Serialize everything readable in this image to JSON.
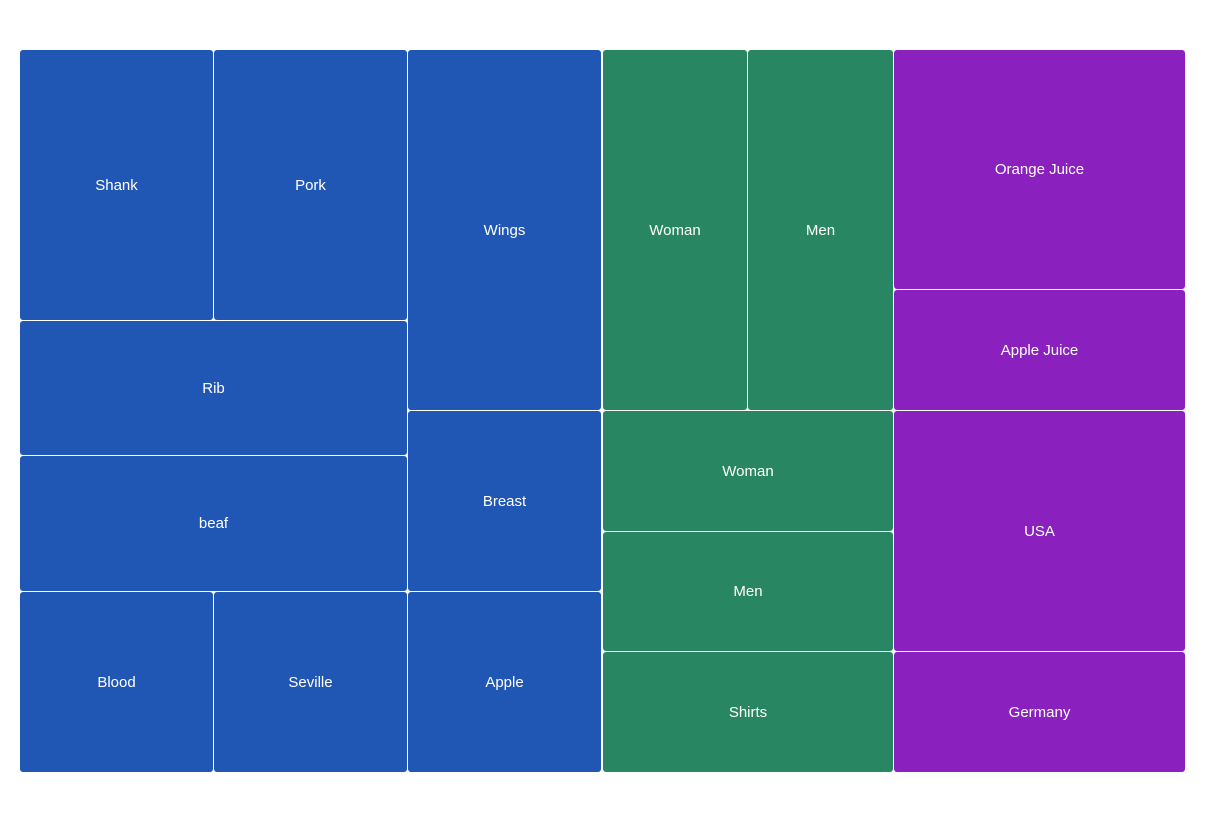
{
  "chart_data": {
    "type": "treemap",
    "groups": [
      {
        "color": "#2057b5",
        "items": [
          {
            "label": "Shank"
          },
          {
            "label": "Pork"
          },
          {
            "label": "Rib"
          },
          {
            "label": "beaf"
          },
          {
            "label": "Blood"
          },
          {
            "label": "Seville"
          },
          {
            "label": "Wings"
          },
          {
            "label": "Breast"
          },
          {
            "label": "Apple"
          }
        ]
      },
      {
        "color": "#288663",
        "items": [
          {
            "label": "Woman"
          },
          {
            "label": "Men"
          },
          {
            "label": "Woman"
          },
          {
            "label": "Men"
          },
          {
            "label": "Shirts"
          }
        ]
      },
      {
        "color": "#8a20be",
        "items": [
          {
            "label": "Orange Juice"
          },
          {
            "label": "Apple Juice"
          },
          {
            "label": "USA"
          },
          {
            "label": "Germany"
          }
        ]
      }
    ]
  }
}
